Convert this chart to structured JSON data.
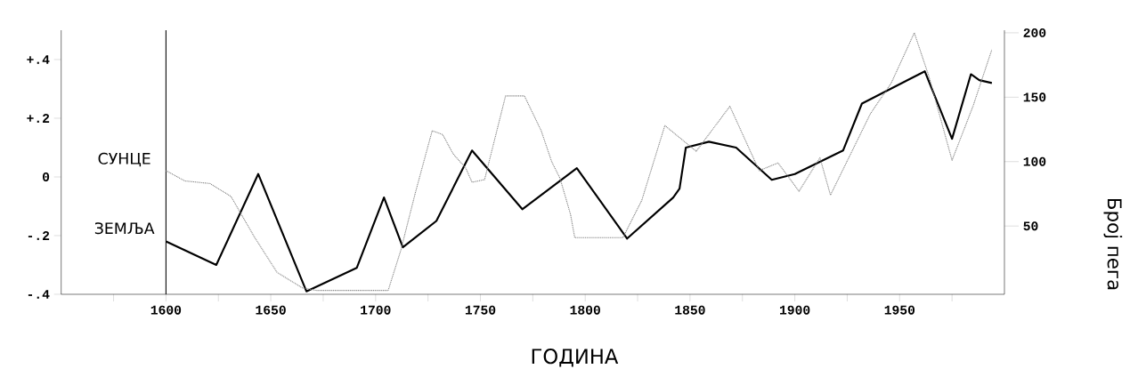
{
  "chart_data": {
    "type": "line",
    "xlabel": "ГОДИНА",
    "y2label": "Број пега",
    "xlim": [
      1550,
      2000
    ],
    "xticks": [
      {
        "value": 1575,
        "label": null
      },
      1600,
      {
        "value": 1625,
        "label": null
      },
      1650,
      {
        "value": 1675,
        "label": null
      },
      1700,
      {
        "value": 1725,
        "label": null
      },
      1750,
      {
        "value": 1775,
        "label": null
      },
      1800,
      {
        "value": 1825,
        "label": null
      },
      1850,
      {
        "value": 1875,
        "label": null
      },
      1900,
      {
        "value": 1925,
        "label": null
      },
      1950,
      {
        "value": 1975,
        "label": null
      }
    ],
    "ylim": [
      -0.4,
      0.5
    ],
    "yticks": [
      {
        "value": -0.4,
        "label": "-.4"
      },
      {
        "value": -0.2,
        "label": "-.2"
      },
      0,
      {
        "value": 0.2,
        "label": "+.2"
      },
      {
        "value": 0.4,
        "label": "+.4"
      }
    ],
    "y2lim": [
      -3,
      202
    ],
    "y2ticks": [
      50,
      100,
      150,
      200
    ],
    "marker": "none",
    "ref_lines": [
      {
        "axis": "x",
        "value": 1600,
        "color": "#000000"
      }
    ],
    "series": [
      {
        "name": "СУНЦЕ",
        "color": "#808080",
        "axis": "y2",
        "line_style": "dotted",
        "x": [
          1600,
          1609,
          1621,
          1631,
          1642,
          1653,
          1665,
          1672,
          1706,
          1712,
          1719,
          1727,
          1732,
          1737,
          1743,
          1746,
          1752,
          1762,
          1771,
          1779,
          1784,
          1788,
          1793,
          1795,
          1818,
          1827,
          1838,
          1853,
          1869,
          1883,
          1892,
          1902,
          1912,
          1917,
          1936,
          1946,
          1957,
          1964,
          1975,
          1985,
          1994
        ],
        "values": [
          93,
          85,
          83,
          73,
          42,
          14,
          2,
          0,
          0,
          31,
          76,
          124,
          121,
          106,
          95,
          84,
          86,
          151,
          151,
          124,
          100,
          87,
          59,
          41,
          41,
          70,
          128,
          108,
          143,
          93,
          99,
          77,
          103,
          74,
          137,
          161,
          200,
          166,
          101,
          143,
          187
        ]
      },
      {
        "name": "ЗЕМЉА",
        "color": "#000000",
        "line_style": "solid",
        "x": [
          1600,
          1624,
          1644,
          1667,
          1691,
          1704,
          1713,
          1729,
          1746,
          1770,
          1796,
          1820,
          1842,
          1845,
          1848,
          1859,
          1872,
          1889,
          1900,
          1923,
          1932,
          1962,
          1975,
          1984,
          1988,
          1994
        ],
        "values": [
          -0.22,
          -0.3,
          0.01,
          -0.39,
          -0.31,
          -0.07,
          -0.24,
          -0.15,
          0.09,
          -0.11,
          0.03,
          -0.21,
          -0.07,
          -0.04,
          0.1,
          0.12,
          0.1,
          -0.01,
          0.01,
          0.09,
          0.25,
          0.36,
          0.13,
          0.35,
          0.33,
          0.32
        ]
      }
    ]
  }
}
